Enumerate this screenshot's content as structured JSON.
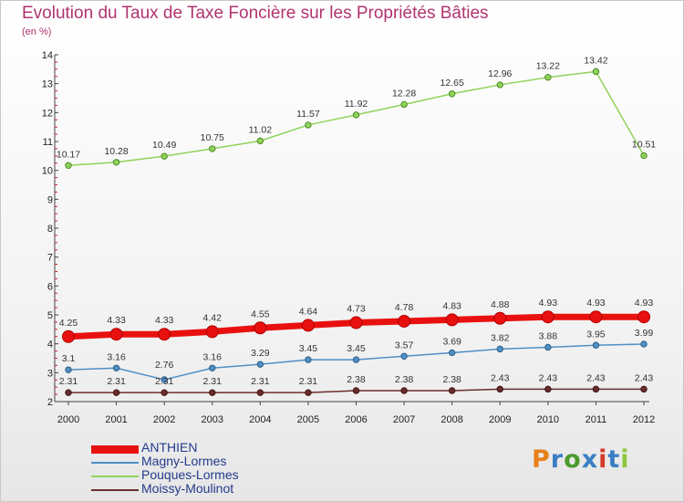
{
  "title": "Evolution du Taux de Taxe Foncière sur les Propriétés Bâties",
  "subtitle": "(en %)",
  "brand": {
    "text": "Proxiti",
    "colors": [
      "#e8801a",
      "#3a7fc4",
      "#4a9a2e",
      "#3a7fc4",
      "#d43a2a",
      "#3a7fc4",
      "#8cc63e"
    ]
  },
  "chart_data": {
    "type": "line",
    "x": [
      "2000",
      "2001",
      "2002",
      "2003",
      "2004",
      "2005",
      "2006",
      "2007",
      "2008",
      "2009",
      "2010",
      "2011",
      "2012"
    ],
    "ylim": [
      2,
      14
    ],
    "yticks": [
      "2",
      "3",
      "4",
      "5",
      "6",
      "7",
      "8",
      "9",
      "10",
      "11",
      "12",
      "13",
      "14"
    ],
    "grid": false,
    "legend_position": "bottom-left",
    "series": [
      {
        "name": "ANTHIEN",
        "color": "#e8110f",
        "values": [
          4.25,
          4.33,
          4.33,
          4.42,
          4.55,
          4.64,
          4.73,
          4.78,
          4.83,
          4.88,
          4.93,
          4.93,
          4.93
        ],
        "labels": [
          "4.25",
          "4.33",
          "4.33",
          "4.42",
          "4.55",
          "4.64",
          "4.73",
          "4.78",
          "4.83",
          "4.88",
          "4.93",
          "4.93",
          "4.93"
        ]
      },
      {
        "name": "Magny-Lormes",
        "color": "#4f8fc4",
        "values": [
          3.1,
          3.16,
          2.76,
          3.16,
          3.29,
          3.45,
          3.45,
          3.57,
          3.69,
          3.82,
          3.88,
          3.95,
          3.99
        ],
        "labels": [
          "3.1",
          "3.16",
          "2.76",
          "3.16",
          "3.29",
          "3.45",
          "3.45",
          "3.57",
          "3.69",
          "3.82",
          "3.88",
          "3.95",
          "3.99"
        ]
      },
      {
        "name": "Pouques-Lormes",
        "color": "#8fd35a",
        "values": [
          10.17,
          10.28,
          10.49,
          10.75,
          11.02,
          11.57,
          11.92,
          12.28,
          12.65,
          12.96,
          13.22,
          13.42,
          10.51
        ],
        "labels": [
          "10.17",
          "10.28",
          "10.49",
          "10.75",
          "11.02",
          "11.57",
          "11.92",
          "12.28",
          "12.65",
          "12.96",
          "13.22",
          "13.42",
          "10.51"
        ]
      },
      {
        "name": "Moissy-Moulinot",
        "color": "#6b2d2d",
        "values": [
          2.31,
          2.31,
          2.31,
          2.31,
          2.31,
          2.31,
          2.38,
          2.38,
          2.38,
          2.43,
          2.43,
          2.43,
          2.43
        ],
        "labels": [
          "2.31",
          "2.31",
          "2.31",
          "2.31",
          "2.31",
          "2.31",
          "2.38",
          "2.38",
          "2.38",
          "2.43",
          "2.43",
          "2.43",
          "2.43"
        ]
      }
    ]
  }
}
